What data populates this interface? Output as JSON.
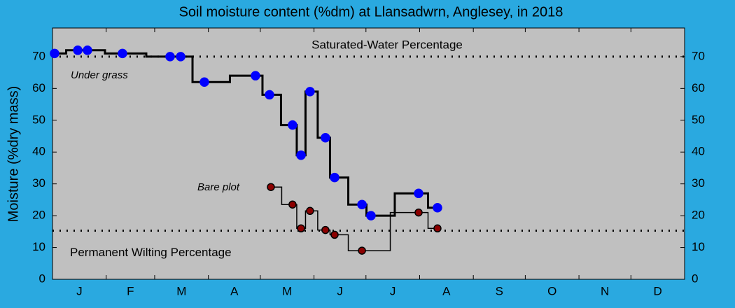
{
  "chart_data": {
    "type": "line",
    "title": "Soil moisture content (%dm)  at Llansadwrn, Anglesey, in 2018",
    "ylabel": "Moisture (%dry mass)",
    "xlim": [
      0,
      365
    ],
    "ylim": [
      0,
      79
    ],
    "yticks": [
      0,
      10,
      20,
      30,
      40,
      50,
      60,
      70
    ],
    "xticks": [
      {
        "value": 15.5,
        "label": "J"
      },
      {
        "value": 45,
        "label": "F"
      },
      {
        "value": 74.5,
        "label": "M"
      },
      {
        "value": 105,
        "label": "A"
      },
      {
        "value": 135.5,
        "label": "M"
      },
      {
        "value": 166,
        "label": "J"
      },
      {
        "value": 196.5,
        "label": "J"
      },
      {
        "value": 227.5,
        "label": "A"
      },
      {
        "value": 258,
        "label": "S"
      },
      {
        "value": 288.5,
        "label": "O"
      },
      {
        "value": 319,
        "label": "N"
      },
      {
        "value": 349.5,
        "label": "D"
      }
    ],
    "xminorticks": [
      31,
      59,
      90,
      120,
      151,
      181,
      212,
      243,
      273,
      304,
      334
    ],
    "reference_lines": [
      {
        "label": "Saturated-Water Percentage",
        "value": 70
      },
      {
        "label": "Permanent Wilting Percentage",
        "value": 15.3
      }
    ],
    "series": [
      {
        "name": "Under grass",
        "color": "#0000ff",
        "x": [
          1.2,
          14.6,
          20.2,
          40.4,
          67.9,
          74,
          87.7,
          117.2,
          125.3,
          138.6,
          143.5,
          148.7,
          157.6,
          162.9,
          178.7,
          183.9,
          211.4,
          222.3
        ],
        "values": [
          71,
          72,
          72,
          71,
          70,
          70,
          62,
          64,
          58,
          48.5,
          39,
          59,
          44.5,
          32,
          23.5,
          20,
          27,
          22.5
        ]
      },
      {
        "name": "Bare plot",
        "color": "#8b0000",
        "x": [
          126.1,
          138.6,
          143.5,
          148.7,
          157.6,
          162.9,
          178.7,
          211.4,
          222.3
        ],
        "values": [
          29,
          23.5,
          16,
          21.5,
          15.5,
          14,
          9,
          21,
          16
        ]
      }
    ]
  }
}
